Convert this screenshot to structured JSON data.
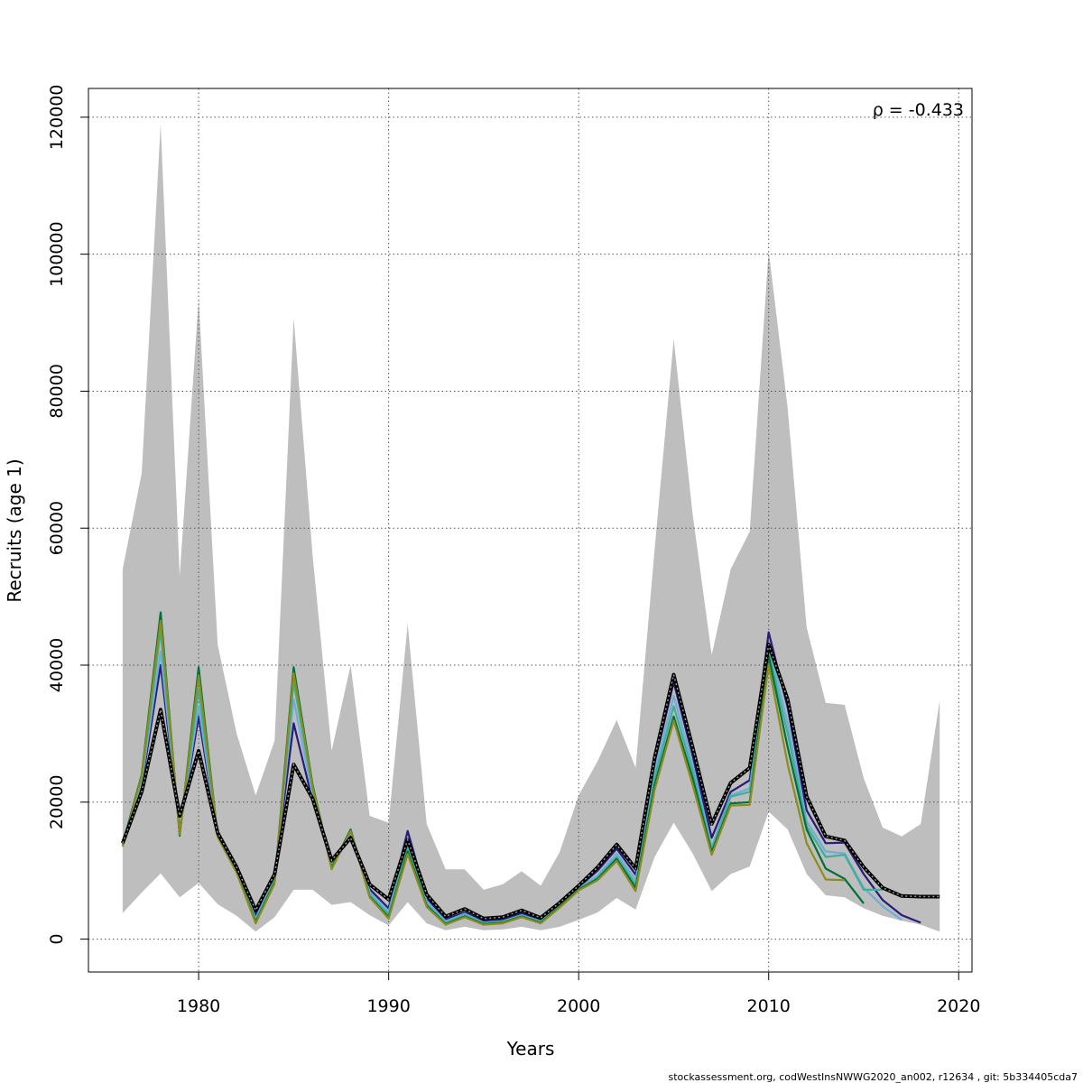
{
  "chart_data": {
    "type": "line",
    "xlabel": "Years",
    "ylabel": "Recruits (age 1)",
    "xlim": [
      1974.2,
      2020.7
    ],
    "ylim": [
      -4800,
      124200
    ],
    "x_ticks": [
      1980,
      1990,
      2000,
      2010,
      2020
    ],
    "x_tick_labels": [
      "1980",
      "1990",
      "2000",
      "2010",
      "2020"
    ],
    "y_ticks": [
      0,
      20000,
      40000,
      60000,
      80000,
      100000,
      120000
    ],
    "y_tick_labels": [
      "0",
      "20000",
      "40000",
      "60000",
      "80000",
      "100000",
      "120000"
    ],
    "grid": true,
    "annotation": "ρ = -0.433",
    "footer": "stockassessment.org, codWestInsNWWG2020_an002, r12634 , git: 5b334405cda7",
    "band": {
      "color": "#bebebe",
      "x": [
        1976,
        1977,
        1978,
        1979,
        1980,
        1981,
        1982,
        1983,
        1984,
        1985,
        1986,
        1987,
        1988,
        1989,
        1990,
        1991,
        1992,
        1993,
        1994,
        1995,
        1996,
        1997,
        1998,
        1999,
        2000,
        2001,
        2002,
        2003,
        2004,
        2005,
        2006,
        2007,
        2008,
        2009,
        2010,
        2011,
        2012,
        2013,
        2014,
        2015,
        2016,
        2017,
        2018,
        2019
      ],
      "upper": [
        54000,
        68000,
        119000,
        53000,
        93500,
        43000,
        30000,
        21000,
        29000,
        90700,
        56000,
        27500,
        40000,
        18000,
        17000,
        46000,
        16800,
        10200,
        10200,
        7200,
        8000,
        9900,
        7800,
        12700,
        21000,
        26000,
        32000,
        25000,
        57000,
        87600,
        62000,
        41500,
        54000,
        59500,
        100500,
        77500,
        45500,
        34500,
        34200,
        23500,
        16300,
        15000,
        16800,
        34800
      ],
      "lower": [
        3800,
        6800,
        9600,
        6100,
        8200,
        5100,
        3400,
        1100,
        3200,
        7200,
        7200,
        5000,
        5400,
        3500,
        2000,
        5400,
        2300,
        1300,
        1800,
        1300,
        1400,
        1800,
        1300,
        1800,
        2800,
        3900,
        6000,
        4300,
        12000,
        17000,
        12500,
        7000,
        9500,
        10600,
        18600,
        16000,
        9500,
        6400,
        6100,
        4500,
        3400,
        2700,
        2100,
        1100
      ]
    },
    "series": [
      {
        "color": "#000000",
        "style": "dashed-black",
        "x": [
          1976,
          1977,
          1978,
          1979,
          1980,
          1981,
          1982,
          1983,
          1984,
          1985,
          1986,
          1987,
          1988,
          1989,
          1990,
          1991,
          1992,
          1993,
          1994,
          1995,
          1996,
          1997,
          1998,
          1999,
          2000,
          2001,
          2002,
          2003,
          2004,
          2005,
          2006,
          2007,
          2008,
          2009,
          2010,
          2011,
          2012,
          2013,
          2014,
          2015,
          2016,
          2017,
          2018,
          2019
        ],
        "values": [
          14000,
          21500,
          33500,
          18000,
          27500,
          15500,
          10500,
          4200,
          9500,
          25500,
          20500,
          11500,
          14800,
          8000,
          5800,
          14500,
          6500,
          3300,
          4400,
          3000,
          3200,
          4200,
          3100,
          5300,
          7800,
          10500,
          13800,
          10300,
          26500,
          38600,
          28000,
          16800,
          22800,
          25000,
          43000,
          35000,
          20800,
          15000,
          14400,
          10500,
          7500,
          6300,
          6200,
          6200
        ]
      },
      {
        "color": "#2a1a7a",
        "x": [
          1976,
          1977,
          1978,
          1979,
          1980,
          1981,
          1982,
          1983,
          1984,
          1985,
          1986,
          1987,
          1988,
          1989,
          1990,
          1991,
          1992,
          1993,
          1994,
          1995,
          1996,
          1997,
          1998,
          1999,
          2000,
          2001,
          2002,
          2003,
          2004,
          2005,
          2006,
          2007,
          2008,
          2009,
          2010,
          2011,
          2012,
          2013,
          2014,
          2015,
          2016,
          2017,
          2018
        ],
        "values": [
          14200,
          22500,
          40000,
          16000,
          32500,
          15200,
          10200,
          3500,
          9300,
          31500,
          20200,
          11000,
          15300,
          7300,
          4500,
          15800,
          6000,
          2900,
          3900,
          2600,
          2800,
          3800,
          2800,
          5100,
          7600,
          10000,
          13200,
          9400,
          25800,
          37500,
          26800,
          14800,
          21500,
          23200,
          44800,
          33800,
          18800,
          14000,
          14100,
          9500,
          5700,
          3500,
          2400
        ]
      },
      {
        "color": "#6baed6",
        "x": [
          1976,
          1977,
          1978,
          1979,
          1980,
          1981,
          1982,
          1983,
          1984,
          1985,
          1986,
          1987,
          1988,
          1989,
          1990,
          1991,
          1992,
          1993,
          1994,
          1995,
          1996,
          1997,
          1998,
          1999,
          2000,
          2001,
          2002,
          2003,
          2004,
          2005,
          2006,
          2007,
          2008,
          2009,
          2010,
          2011,
          2012,
          2013,
          2014,
          2015,
          2016,
          2017
        ],
        "values": [
          14100,
          23000,
          42000,
          15700,
          34000,
          15000,
          10000,
          3000,
          8900,
          35000,
          21000,
          10800,
          15500,
          6900,
          4000,
          14800,
          5500,
          2600,
          3700,
          2400,
          2600,
          3500,
          2600,
          4900,
          7400,
          9300,
          12500,
          8600,
          24500,
          35500,
          25500,
          13500,
          21000,
          22000,
          43200,
          31500,
          17200,
          12800,
          12500,
          7500,
          4800,
          2800
        ]
      },
      {
        "color": "#41ae9a",
        "x": [
          1976,
          1977,
          1978,
          1979,
          1980,
          1981,
          1982,
          1983,
          1984,
          1985,
          1986,
          1987,
          1988,
          1989,
          1990,
          1991,
          1992,
          1993,
          1994,
          1995,
          1996,
          1997,
          1998,
          1999,
          2000,
          2001,
          2002,
          2003,
          2004,
          2005,
          2006,
          2007,
          2008,
          2009,
          2010,
          2011,
          2012,
          2013,
          2014,
          2015,
          2016
        ],
        "values": [
          14000,
          23500,
          45000,
          15400,
          36500,
          15000,
          9900,
          2700,
          8600,
          37500,
          22000,
          10600,
          15700,
          6500,
          3600,
          13600,
          5100,
          2400,
          3500,
          2300,
          2500,
          3400,
          2500,
          4800,
          7300,
          9000,
          12000,
          8000,
          23500,
          34000,
          24500,
          13000,
          20800,
          21500,
          42000,
          30000,
          16500,
          12000,
          12300,
          7200,
          7200
        ]
      },
      {
        "color": "#00703c",
        "x": [
          1976,
          1977,
          1978,
          1979,
          1980,
          1981,
          1982,
          1983,
          1984,
          1985,
          1986,
          1987,
          1988,
          1989,
          1990,
          1991,
          1992,
          1993,
          1994,
          1995,
          1996,
          1997,
          1998,
          1999,
          2000,
          2001,
          2002,
          2003,
          2004,
          2005,
          2006,
          2007,
          2008,
          2009,
          2010,
          2011,
          2012,
          2013,
          2014,
          2015
        ],
        "values": [
          13800,
          24000,
          47700,
          15100,
          39700,
          15000,
          9800,
          2500,
          8300,
          39700,
          22500,
          10400,
          16000,
          6200,
          3200,
          12800,
          4900,
          2200,
          3300,
          2200,
          2400,
          3300,
          2400,
          4700,
          7200,
          8800,
          11700,
          7500,
          22500,
          32500,
          23500,
          12700,
          19800,
          20000,
          41300,
          28000,
          16000,
          10300,
          8800,
          5200
        ]
      },
      {
        "color": "#8c8c1c",
        "x": [
          1976,
          1977,
          1978,
          1979,
          1980,
          1981,
          1982,
          1983,
          1984,
          1985,
          1986,
          1987,
          1988,
          1989,
          1990,
          1991,
          1992,
          1993,
          1994,
          1995,
          1996,
          1997,
          1998,
          1999,
          2000,
          2001,
          2002,
          2003,
          2004,
          2005,
          2006,
          2007,
          2008,
          2009,
          2010,
          2011,
          2012,
          2013,
          2014
        ],
        "values": [
          13500,
          23800,
          46500,
          15300,
          38500,
          14900,
          9700,
          2300,
          8100,
          38800,
          22200,
          10200,
          15800,
          6100,
          3000,
          12400,
          4700,
          2100,
          3200,
          2100,
          2300,
          3200,
          2300,
          4600,
          7100,
          8600,
          11400,
          7000,
          21800,
          31900,
          22500,
          12300,
          19500,
          19600,
          40000,
          25500,
          14000,
          8700,
          8600
        ]
      }
    ]
  }
}
